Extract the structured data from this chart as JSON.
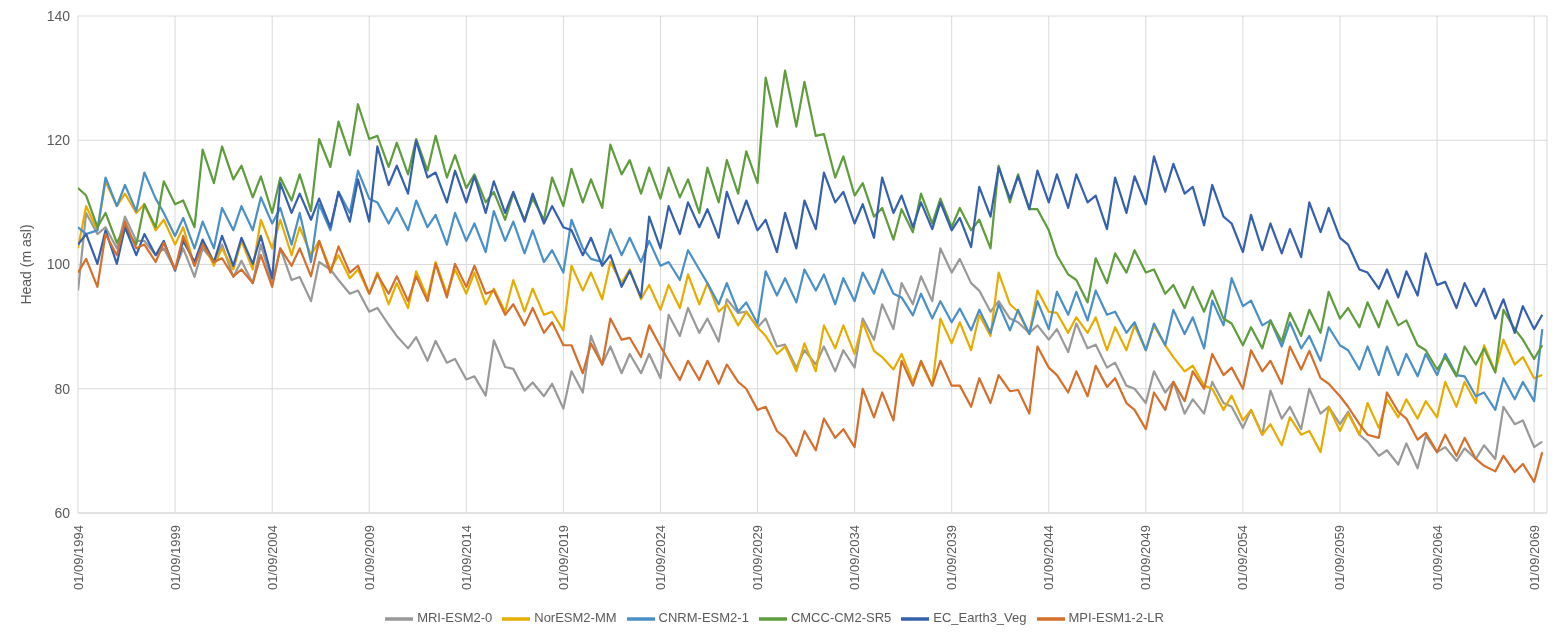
{
  "chart_data": {
    "type": "line",
    "ylabel": "Head (m asl)",
    "x": [
      "1994-09",
      "1995-02",
      "1995-09",
      "1996-02",
      "1996-09",
      "1997-02",
      "1997-09",
      "1998-02",
      "1998-09",
      "1999-02",
      "1999-09",
      "2000-02",
      "2000-09",
      "2001-02",
      "2001-09",
      "2002-02",
      "2002-09",
      "2003-02",
      "2003-09",
      "2004-02",
      "2004-09",
      "2005-02",
      "2005-09",
      "2006-02",
      "2006-09",
      "2007-02",
      "2007-09",
      "2008-02",
      "2008-09",
      "2009-02",
      "2009-09",
      "2010-02",
      "2010-09",
      "2011-02",
      "2011-09",
      "2012-02",
      "2012-09",
      "2013-02",
      "2013-09",
      "2014-02",
      "2014-09",
      "2015-02",
      "2015-09",
      "2016-02",
      "2016-09",
      "2017-02",
      "2017-09",
      "2018-02",
      "2018-09",
      "2019-02",
      "2019-09",
      "2020-02",
      "2020-09",
      "2021-02",
      "2021-09",
      "2022-02",
      "2022-09",
      "2023-02",
      "2023-09",
      "2024-02",
      "2024-09",
      "2025-02",
      "2025-09",
      "2026-02",
      "2026-09",
      "2027-02",
      "2027-09",
      "2028-02",
      "2028-09",
      "2029-02",
      "2029-09",
      "2030-02",
      "2030-09",
      "2031-02",
      "2031-09",
      "2032-02",
      "2032-09",
      "2033-02",
      "2033-09",
      "2034-02",
      "2034-09",
      "2035-02",
      "2035-09",
      "2036-02",
      "2036-09",
      "2037-02",
      "2037-09",
      "2038-02",
      "2038-09",
      "2039-02",
      "2039-09",
      "2040-02",
      "2040-09",
      "2041-02",
      "2041-09",
      "2042-02",
      "2042-09",
      "2043-02",
      "2043-09",
      "2044-02",
      "2044-09",
      "2045-02",
      "2045-09",
      "2046-02",
      "2046-09",
      "2047-02",
      "2047-09",
      "2048-02",
      "2048-09",
      "2049-02",
      "2049-09",
      "2050-02",
      "2050-09",
      "2051-02",
      "2051-09",
      "2052-02",
      "2052-09",
      "2053-02",
      "2053-09",
      "2054-02",
      "2054-09",
      "2055-02",
      "2055-09",
      "2056-02",
      "2056-09",
      "2057-02",
      "2057-09",
      "2058-02",
      "2058-09",
      "2059-02",
      "2059-09",
      "2060-02",
      "2060-09",
      "2061-02",
      "2061-09",
      "2062-02",
      "2062-09",
      "2063-02",
      "2063-09",
      "2064-02",
      "2064-09",
      "2065-02",
      "2065-09",
      "2066-02",
      "2066-09",
      "2067-02",
      "2067-09",
      "2068-02",
      "2068-09",
      "2069-02",
      "2069-09",
      "2070-02"
    ],
    "series": [
      {
        "name": "MRI-ESM2-0",
        "color": "#999999",
        "values": [
          95.8,
          108.3,
          104.9,
          106,
          102.6,
          107.7,
          103.8,
          103.8,
          101.5,
          102.6,
          99.2,
          102.6,
          98,
          102.6,
          100.4,
          103.2,
          98,
          100.6,
          97,
          103.2,
          97,
          102.6,
          97.5,
          98,
          94.1,
          100.4,
          99.2,
          97.5,
          95.3,
          95.8,
          92.4,
          93,
          90.3,
          88.5,
          86.5,
          88.3,
          84.5,
          87.7,
          84.2,
          84.8,
          81.5,
          82,
          78.9,
          87.8,
          83.5,
          83.2,
          79.7,
          81,
          78.8,
          80.8,
          76.8,
          82.8,
          79.4,
          88.5,
          83.9,
          86.8,
          82.5,
          85.6,
          82.5,
          85.6,
          81.7,
          91.9,
          88.5,
          93,
          89,
          91.3,
          87.6,
          94.4,
          92.2,
          92.4,
          89.9,
          91.3,
          86.8,
          87.1,
          83.4,
          86.2,
          83.9,
          86.8,
          82.8,
          86.2,
          83.4,
          91.3,
          87.9,
          93.6,
          89.6,
          97,
          93.6,
          98.1,
          94.1,
          102.6,
          98.7,
          100.9,
          97,
          95.8,
          92.4,
          94.1,
          91.3,
          90.7,
          89,
          90.2,
          87.9,
          89.6,
          85.9,
          90.5,
          86.5,
          87.1,
          83.4,
          84.2,
          80.5,
          80,
          77.7,
          82.8,
          79.4,
          81.1,
          76,
          78.3,
          76,
          81.1,
          77.7,
          77.1,
          73.7,
          76.6,
          72.6,
          79.7,
          75.2,
          77.1,
          73.5,
          80,
          76,
          77.1,
          74.3,
          76.3,
          72.6,
          71.5,
          69.2,
          70.1,
          67.8,
          71.2,
          67.2,
          72.4,
          69.8,
          70.6,
          68.4,
          70.4,
          68.7,
          70.9,
          68.7,
          77.1,
          74.3,
          74.9,
          70.6,
          71.5
        ]
      },
      {
        "name": "NorESM2-MM",
        "color": "#e6ac00",
        "values": [
          102.6,
          109.4,
          105.5,
          113.4,
          109.4,
          111.4,
          108.3,
          109.7,
          105.5,
          107.2,
          103.2,
          106,
          99.8,
          103.8,
          99.8,
          102.6,
          99.2,
          103.8,
          99.2,
          107.2,
          102.6,
          107.2,
          101.5,
          106,
          101.5,
          103.8,
          99.2,
          101.5,
          97.8,
          99.2,
          95.3,
          98.7,
          93.6,
          97,
          93,
          98.9,
          94.7,
          100.4,
          95.3,
          99.2,
          95.3,
          98.7,
          93.6,
          96.1,
          92.4,
          97.5,
          92.4,
          96.1,
          91.9,
          92.4,
          89.4,
          99.8,
          95.8,
          98.7,
          94.4,
          100.4,
          97,
          99.2,
          94.4,
          96.7,
          92.7,
          96.7,
          93,
          98.4,
          93.6,
          97,
          92.4,
          93.6,
          90.2,
          92.4,
          89.9,
          88.5,
          85.6,
          86.8,
          82.8,
          87.3,
          82.8,
          90.2,
          86.5,
          90.2,
          85.6,
          90.7,
          86.1,
          85.1,
          83.1,
          85.6,
          81.1,
          84.2,
          80.5,
          91.3,
          87.3,
          90.7,
          86.2,
          91.9,
          88.5,
          98.7,
          93.6,
          92.4,
          88.8,
          95.8,
          92.4,
          92.2,
          89,
          91.5,
          89,
          91.5,
          86.2,
          89.9,
          86.2,
          90.2,
          86.2,
          90.2,
          87,
          85.1,
          82.8,
          83.7,
          80.5,
          80,
          76.6,
          78.9,
          74.9,
          76.6,
          72.6,
          74.3,
          70.9,
          75.4,
          72.6,
          73.2,
          69.8,
          77.1,
          73.2,
          76,
          72.6,
          77.7,
          73.7,
          78.3,
          75.4,
          78.3,
          75.2,
          78,
          75.4,
          81.1,
          77.1,
          81.1,
          77.7,
          87,
          82.8,
          87.9,
          83.9,
          85.1,
          81.7,
          82.2
        ]
      },
      {
        "name": "CNRM-ESM2-1",
        "color": "#4a8fc6",
        "values": [
          106,
          104.9,
          105.5,
          114,
          109.4,
          112.8,
          108.6,
          114.8,
          110.6,
          108.3,
          104.6,
          107.5,
          102.6,
          106.9,
          102.6,
          109.1,
          105.5,
          109.4,
          105.5,
          110.8,
          106.6,
          109.1,
          103.2,
          108.3,
          100.4,
          109.7,
          105.5,
          111.7,
          108.3,
          115.1,
          110.6,
          110,
          106.6,
          109.1,
          105.5,
          110.3,
          106,
          108,
          103.2,
          108.3,
          103.8,
          106.6,
          102,
          108.6,
          103.8,
          106.9,
          101.8,
          105.5,
          100.4,
          102.3,
          98.7,
          107.2,
          102.6,
          100.9,
          100.4,
          105.7,
          101.5,
          104.3,
          100.4,
          103.8,
          99.8,
          100.4,
          97.5,
          102.3,
          99.2,
          97,
          93.6,
          97,
          92.4,
          93.9,
          90.5,
          98.9,
          95,
          97.8,
          93.9,
          99.2,
          95.8,
          98.4,
          93.6,
          97.8,
          94.1,
          98.7,
          95.3,
          99.2,
          95.3,
          94.7,
          91.8,
          95.3,
          91.3,
          94.1,
          90.7,
          92.9,
          89.4,
          92.7,
          89,
          93.6,
          89.4,
          92.7,
          88.8,
          94.1,
          89.6,
          95.6,
          91.9,
          95.6,
          91,
          95.8,
          91.9,
          92.4,
          89,
          90.7,
          86.2,
          90.5,
          87,
          92.7,
          88.8,
          91.5,
          86.5,
          94.2,
          90.2,
          97.8,
          93.3,
          94.2,
          90.2,
          91,
          86.8,
          90.7,
          86.5,
          88.5,
          84.5,
          89.9,
          87,
          86.2,
          83.1,
          86.8,
          82.2,
          86.8,
          82.2,
          85.6,
          82,
          85.6,
          82.2,
          85.6,
          82.2,
          82,
          78.8,
          79.4,
          76.6,
          81.7,
          78.3,
          81.1,
          78,
          89.6
        ]
      },
      {
        "name": "CMCC-CM2-SR5",
        "color": "#5e9c3c",
        "values": [
          112.3,
          111.1,
          106,
          108.3,
          103.5,
          106,
          103.2,
          109.7,
          106,
          113.4,
          109.7,
          110.3,
          106,
          118.5,
          113.1,
          119,
          113.7,
          115.9,
          110.8,
          114.2,
          108.3,
          114,
          110.3,
          114.5,
          108.6,
          120.2,
          115.7,
          123,
          117.6,
          125.8,
          120.2,
          120.7,
          115.7,
          119.6,
          114.5,
          120.2,
          115.1,
          120.7,
          114,
          117.6,
          112.3,
          114.5,
          110,
          111.7,
          107.2,
          111.4,
          107.2,
          110.6,
          107.2,
          114,
          109.4,
          115.4,
          110,
          113.7,
          109.1,
          119.3,
          114.5,
          116.8,
          111.4,
          115.6,
          110.6,
          115.6,
          110.8,
          113.7,
          108.3,
          115.6,
          110,
          116.8,
          111.4,
          118.2,
          113.1,
          130.1,
          122.2,
          131.2,
          122.2,
          129.4,
          120.7,
          121,
          114,
          117.4,
          111.1,
          113.1,
          107.7,
          109.1,
          104,
          108.9,
          105.2,
          111.4,
          106.6,
          110.6,
          106,
          109.1,
          105.5,
          107.2,
          102.6,
          115.9,
          110,
          114.5,
          108.9,
          108.9,
          105.5,
          101.5,
          98.4,
          97.5,
          93.9,
          101,
          97,
          101.8,
          98.7,
          102.3,
          98.7,
          99.2,
          95.3,
          96.7,
          93,
          96.4,
          92.4,
          95.8,
          91.3,
          90.5,
          87,
          89.9,
          86.5,
          91,
          87.6,
          92.2,
          88.5,
          92.7,
          89,
          95.6,
          91.3,
          93,
          89.9,
          93.9,
          89.9,
          94.2,
          90.2,
          91,
          87,
          86.2,
          83.1,
          85.1,
          82,
          86.8,
          83.9,
          86.5,
          82.6,
          92.7,
          89.6,
          87.9,
          84.8,
          87
        ]
      },
      {
        "name": "EC_Earth3_Veg",
        "color": "#3560ad",
        "values": [
          103.2,
          104.9,
          100.1,
          105.5,
          100.1,
          106,
          101.5,
          104.9,
          101.5,
          103.8,
          99,
          103.8,
          100.4,
          104,
          100.4,
          104.6,
          99.8,
          104.3,
          100.1,
          104.6,
          97.8,
          113.1,
          108.3,
          111.4,
          107.2,
          110.6,
          106,
          111.7,
          106.9,
          113.7,
          106.9,
          119,
          112.8,
          115.9,
          111.4,
          119.9,
          114,
          114.8,
          110,
          115.1,
          110,
          114.2,
          108.3,
          113.4,
          108.3,
          111.7,
          106.9,
          111.4,
          106.6,
          109.4,
          106,
          105.5,
          101.5,
          104.3,
          99.8,
          101.5,
          96.4,
          99,
          94.7,
          107.7,
          102.6,
          109.4,
          104.9,
          110,
          106,
          108.9,
          104.3,
          111.7,
          106.6,
          110.3,
          105.5,
          107.2,
          102,
          108.3,
          102.6,
          110.3,
          105.7,
          114.8,
          110,
          111.7,
          106.6,
          109.7,
          104.3,
          114,
          108.3,
          111.1,
          106,
          110,
          105.7,
          110,
          105.5,
          107.5,
          102.8,
          112.5,
          107.7,
          115.6,
          110.6,
          114.2,
          108.9,
          115.1,
          110,
          114.5,
          109.1,
          114.5,
          110,
          111.1,
          105.7,
          114,
          108.3,
          114.2,
          109.7,
          117.4,
          111.7,
          116.2,
          111.4,
          112.5,
          106.3,
          112.8,
          107.7,
          106.6,
          102,
          108,
          102.3,
          106.6,
          101.8,
          105.7,
          101.2,
          110,
          105.2,
          109.1,
          104.3,
          103.2,
          99.2,
          98.7,
          96.1,
          99.2,
          94.7,
          98.9,
          95,
          101.8,
          96.7,
          97.2,
          93,
          97,
          93.3,
          96.1,
          91.3,
          94.4,
          89,
          93.3,
          89.6,
          91.9
        ]
      },
      {
        "name": "MPI-ESM1-2-LR",
        "color": "#d46f2c",
        "values": [
          98.7,
          100.9,
          96.4,
          104.9,
          101.5,
          106.9,
          102.6,
          103.2,
          100.4,
          103.5,
          99.2,
          104.6,
          99.8,
          103.2,
          100.4,
          101,
          98.1,
          99.2,
          97,
          101.5,
          96.4,
          102.6,
          99.8,
          102.6,
          98.1,
          103.8,
          98.7,
          102.9,
          98.7,
          99.8,
          95.3,
          98.4,
          95.3,
          98.1,
          94.1,
          98.1,
          94.1,
          100.1,
          94.7,
          100.1,
          96.4,
          99.8,
          95.3,
          95.8,
          91.9,
          93.6,
          90.2,
          93,
          89,
          90.7,
          87,
          87,
          82.5,
          87.3,
          83.9,
          91.3,
          87.9,
          88.2,
          85.1,
          90.2,
          86.8,
          84.5,
          81.4,
          84.5,
          81.4,
          84.5,
          80.8,
          83.9,
          81.1,
          80,
          76.6,
          77.1,
          73.2,
          72.1,
          69.2,
          73.2,
          70.1,
          75.2,
          72.1,
          73.5,
          70.6,
          80,
          75.4,
          79.4,
          74.9,
          84.5,
          80.5,
          84.5,
          80.5,
          84.5,
          80.5,
          80.5,
          77.1,
          81.7,
          77.7,
          82.2,
          79.6,
          79.8,
          76,
          86.8,
          83.4,
          82.2,
          79.4,
          82.8,
          78.8,
          83.7,
          80.3,
          81.7,
          77.7,
          76.6,
          73.5,
          79.4,
          76.6,
          81.1,
          78,
          82.8,
          80,
          85.6,
          82.2,
          83.4,
          80,
          86.2,
          82.8,
          84.5,
          80.8,
          86.8,
          83.1,
          86.1,
          81.7,
          80.8,
          78.8,
          77.1,
          74.3,
          72.6,
          72.1,
          79.4,
          76.3,
          75.2,
          71.8,
          72.9,
          69.8,
          72.6,
          69.2,
          72.1,
          68.7,
          67.6,
          66.7,
          69.2,
          66.6,
          67.9,
          65,
          69.8
        ]
      }
    ],
    "xlim": [
      "1994-09",
      "2070-05"
    ],
    "xticks": [
      {
        "value": "1994-09-01",
        "label": "01/09/1994"
      },
      {
        "value": "1999-09-01",
        "label": "01/09/1999"
      },
      {
        "value": "2004-09-01",
        "label": "01/09/2004"
      },
      {
        "value": "2009-09-01",
        "label": "01/09/2009"
      },
      {
        "value": "2014-09-01",
        "label": "01/09/2014"
      },
      {
        "value": "2019-09-01",
        "label": "01/09/2019"
      },
      {
        "value": "2024-09-01",
        "label": "01/09/2024"
      },
      {
        "value": "2029-09-01",
        "label": "01/09/2029"
      },
      {
        "value": "2034-09-01",
        "label": "01/09/2034"
      },
      {
        "value": "2039-09-01",
        "label": "01/09/2039"
      },
      {
        "value": "2044-09-01",
        "label": "01/09/2044"
      },
      {
        "value": "2049-09-01",
        "label": "01/09/2049"
      },
      {
        "value": "2054-09-01",
        "label": "01/09/2054"
      },
      {
        "value": "2059-09-01",
        "label": "01/09/2059"
      },
      {
        "value": "2064-09-01",
        "label": "01/09/2064"
      },
      {
        "value": "2069-09-01",
        "label": "01/09/2069"
      }
    ],
    "ylim": [
      60,
      140
    ],
    "yticks": [
      60,
      80,
      100,
      120,
      140
    ],
    "grid": true,
    "legend": "bottom",
    "marker": "none",
    "line_style": "solid"
  }
}
